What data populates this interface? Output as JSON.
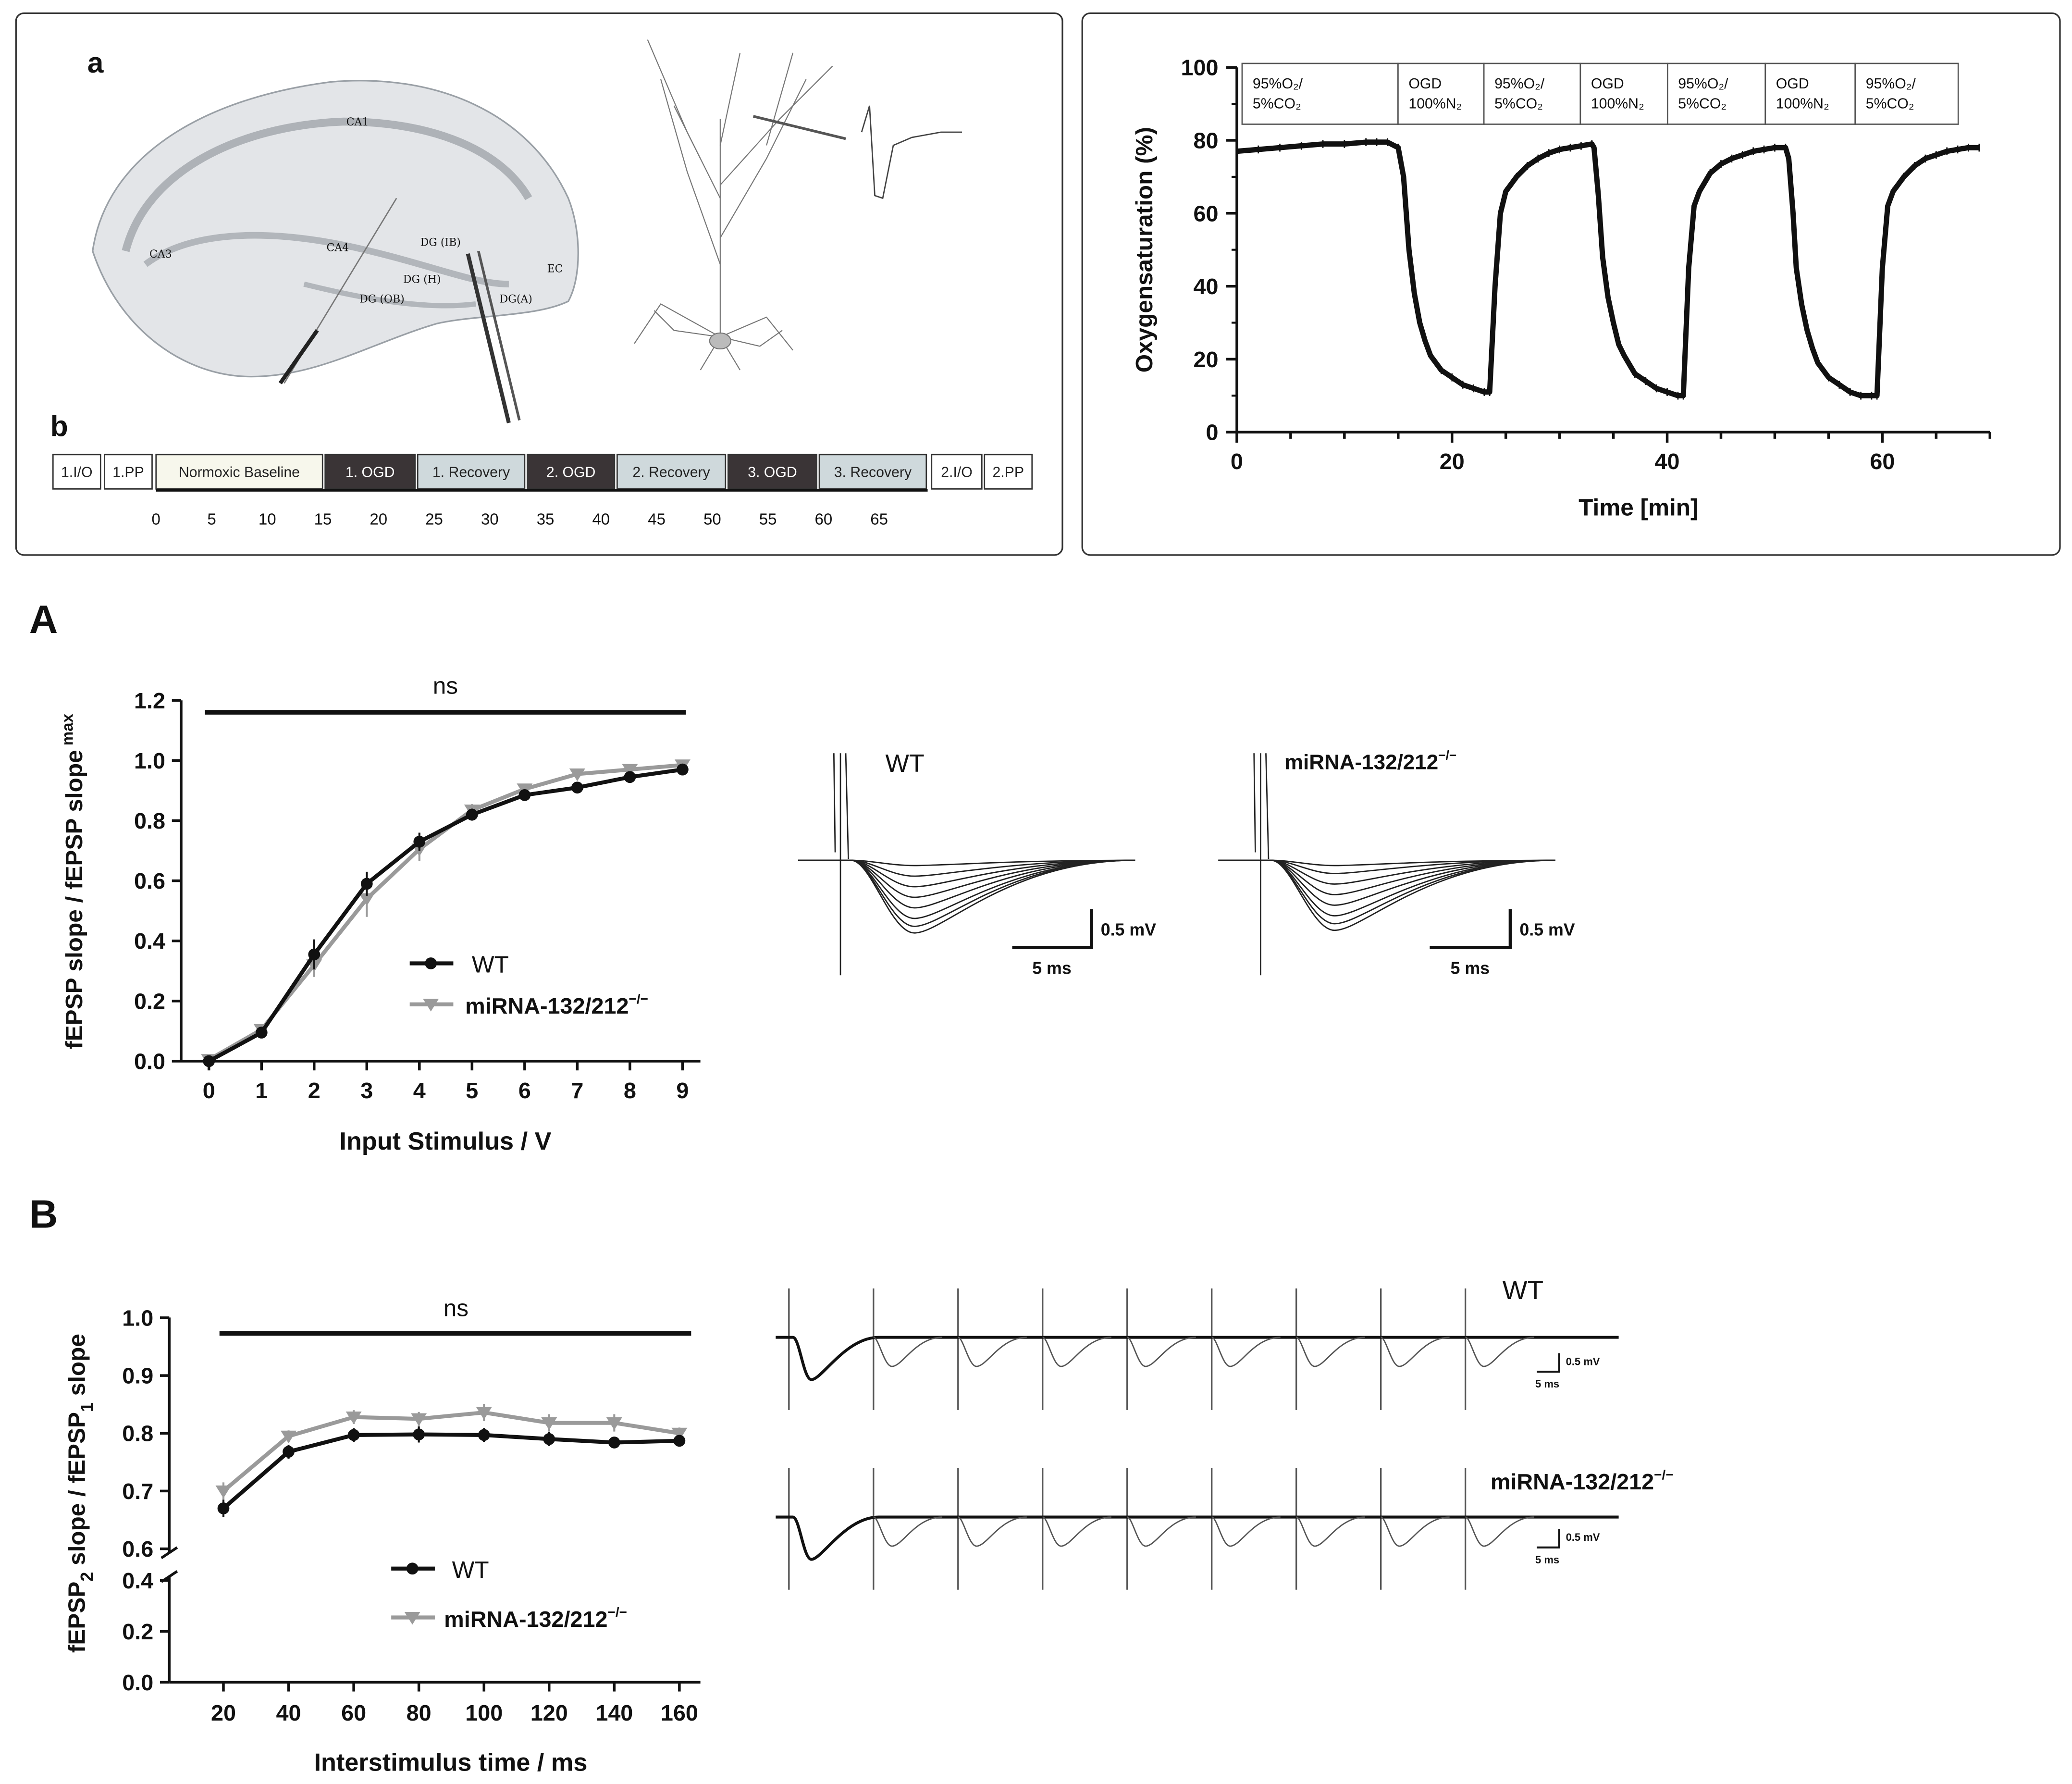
{
  "panel_a_top": {
    "letter_a": "a",
    "letter_b": "b",
    "regions": [
      "CA1",
      "CA3",
      "CA4",
      "DG (IB)",
      "DG (H)",
      "DG (OB)",
      "DG(A)",
      "EC"
    ],
    "protocol": {
      "boxes": [
        "1.I/O",
        "1.PP",
        "Normoxic Baseline",
        "1. OGD",
        "1. Recovery",
        "2. OGD",
        "2. Recovery",
        "3. OGD",
        "3. Recovery",
        "2.I/O",
        "2.PP"
      ],
      "box_kinds": [
        "plain",
        "plain",
        "base",
        "ogd",
        "rec",
        "ogd",
        "rec",
        "ogd",
        "rec",
        "plain",
        "plain"
      ],
      "ticks": [
        "0",
        "5",
        "10",
        "15",
        "20",
        "25",
        "30",
        "35",
        "40",
        "45",
        "50",
        "55",
        "60",
        "65"
      ]
    }
  },
  "colors": {
    "wt": "#111111",
    "ko": "#9a9a9a",
    "ogd_box": "#3a3436",
    "recovery_box": "#cfd9dc",
    "baseline_box": "#f7f7ec",
    "panel_border": "#333333"
  },
  "chart_data": [
    {
      "id": "oxygen",
      "type": "line",
      "xlabel": "Time [min]",
      "ylabel": "Oxygensaturation (%)",
      "xlim": [
        0,
        70
      ],
      "ylim": [
        0,
        100
      ],
      "xticks": [
        "0",
        "20",
        "40",
        "60"
      ],
      "yticks": [
        "0",
        "20",
        "40",
        "60",
        "80",
        "100"
      ],
      "conditions": [
        {
          "l1": "95%O₂/",
          "l2": "5%CO₂"
        },
        {
          "l1": "OGD",
          "l2": "100%N₂"
        },
        {
          "l1": "95%O₂/",
          "l2": "5%CO₂"
        },
        {
          "l1": "OGD",
          "l2": "100%N₂"
        },
        {
          "l1": "95%O₂/",
          "l2": "5%CO₂"
        },
        {
          "l1": "OGD",
          "l2": "100%N₂"
        },
        {
          "l1": "95%O₂/",
          "l2": "5%CO₂"
        }
      ],
      "x": [
        0,
        2,
        4,
        6,
        8,
        10,
        12,
        13,
        14,
        15,
        15.5,
        16,
        16.5,
        17,
        17.5,
        18,
        19,
        20,
        21,
        22,
        23,
        23.5,
        24,
        24.5,
        25,
        26,
        27,
        28,
        29,
        30,
        31,
        32,
        33,
        33.2,
        33.6,
        34,
        34.5,
        35,
        35.5,
        36,
        37,
        38,
        39,
        40,
        41,
        41.5,
        42,
        42.5,
        43,
        44,
        45,
        46,
        47,
        48,
        49,
        50,
        51,
        51.3,
        51.7,
        52,
        52.5,
        53,
        53.5,
        54,
        55,
        56,
        57,
        58,
        59,
        59.5,
        60,
        60.5,
        61,
        62,
        63,
        64,
        65,
        66,
        67,
        68,
        69
      ],
      "y": [
        77,
        77.5,
        78,
        78.5,
        79,
        79,
        79.5,
        79.5,
        79.5,
        78,
        70,
        50,
        38,
        30,
        25,
        21,
        17,
        15,
        13,
        12,
        11,
        11,
        40,
        60,
        66,
        70,
        73,
        75,
        76.5,
        77.5,
        78,
        78.5,
        79,
        78,
        65,
        48,
        37,
        30,
        24,
        21,
        16,
        14,
        12,
        11,
        10,
        10,
        45,
        62,
        66,
        71,
        73.5,
        75,
        76,
        77,
        77.5,
        78,
        78,
        75,
        60,
        45,
        35,
        28,
        23,
        19,
        15,
        13,
        11,
        10,
        10,
        10,
        45,
        62,
        66,
        70,
        73,
        75,
        76,
        77,
        77.5,
        78,
        78
      ]
    },
    {
      "id": "io",
      "type": "line",
      "panel": "A",
      "xlabel": "Input Stimulus / V",
      "ylabel": "fEPSP slope / fEPSP slope",
      "ylabel_sub": "max",
      "xlim": [
        0,
        9
      ],
      "ylim": [
        0,
        1.2
      ],
      "xticks": [
        "0",
        "1",
        "2",
        "3",
        "4",
        "5",
        "6",
        "7",
        "8",
        "9"
      ],
      "yticks": [
        "0.0",
        "0.2",
        "0.4",
        "0.6",
        "0.8",
        "1.0",
        "1.2"
      ],
      "annotation": "ns",
      "x": [
        0,
        1,
        2,
        3,
        4,
        5,
        6,
        7,
        8,
        9
      ],
      "series": [
        {
          "name": "WT",
          "values": [
            0.0,
            0.095,
            0.355,
            0.59,
            0.73,
            0.82,
            0.885,
            0.91,
            0.945,
            0.97
          ],
          "err": [
            0.005,
            0.01,
            0.05,
            0.04,
            0.03,
            0.02,
            0.015,
            0.01,
            0.01,
            0.01
          ]
        },
        {
          "name": "miRNA-132/212",
          "sup": "−/−",
          "values": [
            0.005,
            0.105,
            0.32,
            0.54,
            0.705,
            0.835,
            0.905,
            0.955,
            0.97,
            0.985
          ],
          "err": [
            0.005,
            0.01,
            0.04,
            0.06,
            0.04,
            0.02,
            0.015,
            0.01,
            0.01,
            0.01
          ]
        }
      ]
    },
    {
      "id": "ppf",
      "type": "line",
      "panel": "B",
      "xlabel": "Interstimulus time / ms",
      "ylabel_parts": [
        "fEPSP",
        "2",
        " slope / fEPSP",
        "1",
        " slope"
      ],
      "x": [
        20,
        40,
        60,
        80,
        100,
        120,
        140,
        160
      ],
      "xlim": [
        0,
        170
      ],
      "xticks": [
        "20",
        "40",
        "60",
        "80",
        "100",
        "120",
        "140",
        "160"
      ],
      "yticks_upper": [
        "0.6",
        "0.7",
        "0.8",
        "0.9",
        "1.0"
      ],
      "yticks_lower": [
        "0.0",
        "0.2",
        "0.4"
      ],
      "ylim_upper": [
        0.6,
        1.0
      ],
      "ylim_lower": [
        0.0,
        0.4
      ],
      "annotation": "ns",
      "series": [
        {
          "name": "WT",
          "values": [
            0.67,
            0.768,
            0.797,
            0.798,
            0.797,
            0.79,
            0.784,
            0.787
          ],
          "err": [
            0.015,
            0.012,
            0.012,
            0.014,
            0.012,
            0.012,
            0.01,
            0.01
          ]
        },
        {
          "name": "miRNA-132/212",
          "sup": "−/−",
          "values": [
            0.7,
            0.795,
            0.828,
            0.825,
            0.836,
            0.818,
            0.818,
            0.8
          ],
          "err": [
            0.015,
            0.01,
            0.012,
            0.012,
            0.015,
            0.015,
            0.015,
            0.01
          ]
        }
      ]
    }
  ],
  "traces": {
    "a_labels": [
      {
        "name": "WT",
        "sup": ""
      },
      {
        "name": "miRNA-132/212",
        "sup": "−/−"
      }
    ],
    "a_scale_v": "0.5 mV",
    "a_scale_t": "5 ms",
    "b_labels": [
      {
        "name": "WT",
        "sup": ""
      },
      {
        "name": "miRNA-132/212",
        "sup": "−/−"
      }
    ],
    "b_scale_v": "0.5 mV",
    "b_scale_t": "5 ms"
  },
  "panel_letters": {
    "A": "A",
    "B": "B"
  }
}
